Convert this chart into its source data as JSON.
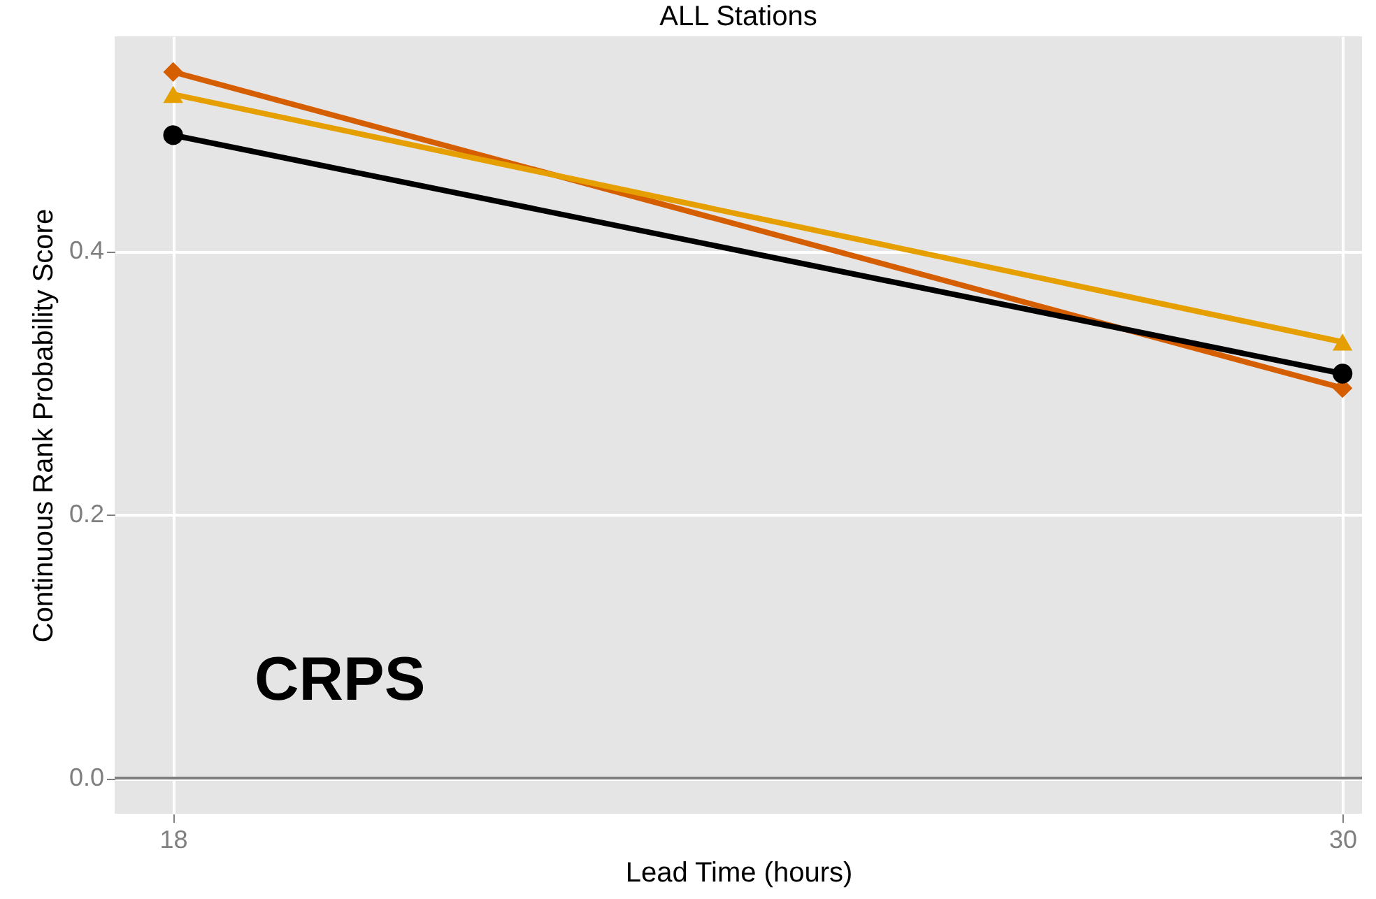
{
  "chart_data": {
    "type": "line",
    "title": "ALL Stations",
    "xlabel": "Lead Time (hours)",
    "ylabel": "Continuous Rank Probability Score",
    "x": [
      18,
      30
    ],
    "series": [
      {
        "color": "#d55e00",
        "marker": "diamond",
        "values": [
          0.536,
          0.296
        ]
      },
      {
        "color": "#e69f00",
        "marker": "triangle",
        "values": [
          0.519,
          0.331
        ]
      },
      {
        "color": "#000000",
        "marker": "circle",
        "values": [
          0.488,
          0.307
        ]
      }
    ],
    "xlim": [
      17.4,
      30.2
    ],
    "xticks": [
      18,
      30
    ],
    "ylim": [
      -0.027,
      0.563
    ],
    "yticks": [
      {
        "value": 0,
        "label": "0.0"
      },
      0.2,
      0.4
    ],
    "grid": true,
    "line_style": "solid",
    "ref_lines": [
      {
        "axis": "y",
        "value": 0,
        "color": "#7f7f7f"
      }
    ],
    "annotations": [
      "CRPS"
    ]
  }
}
